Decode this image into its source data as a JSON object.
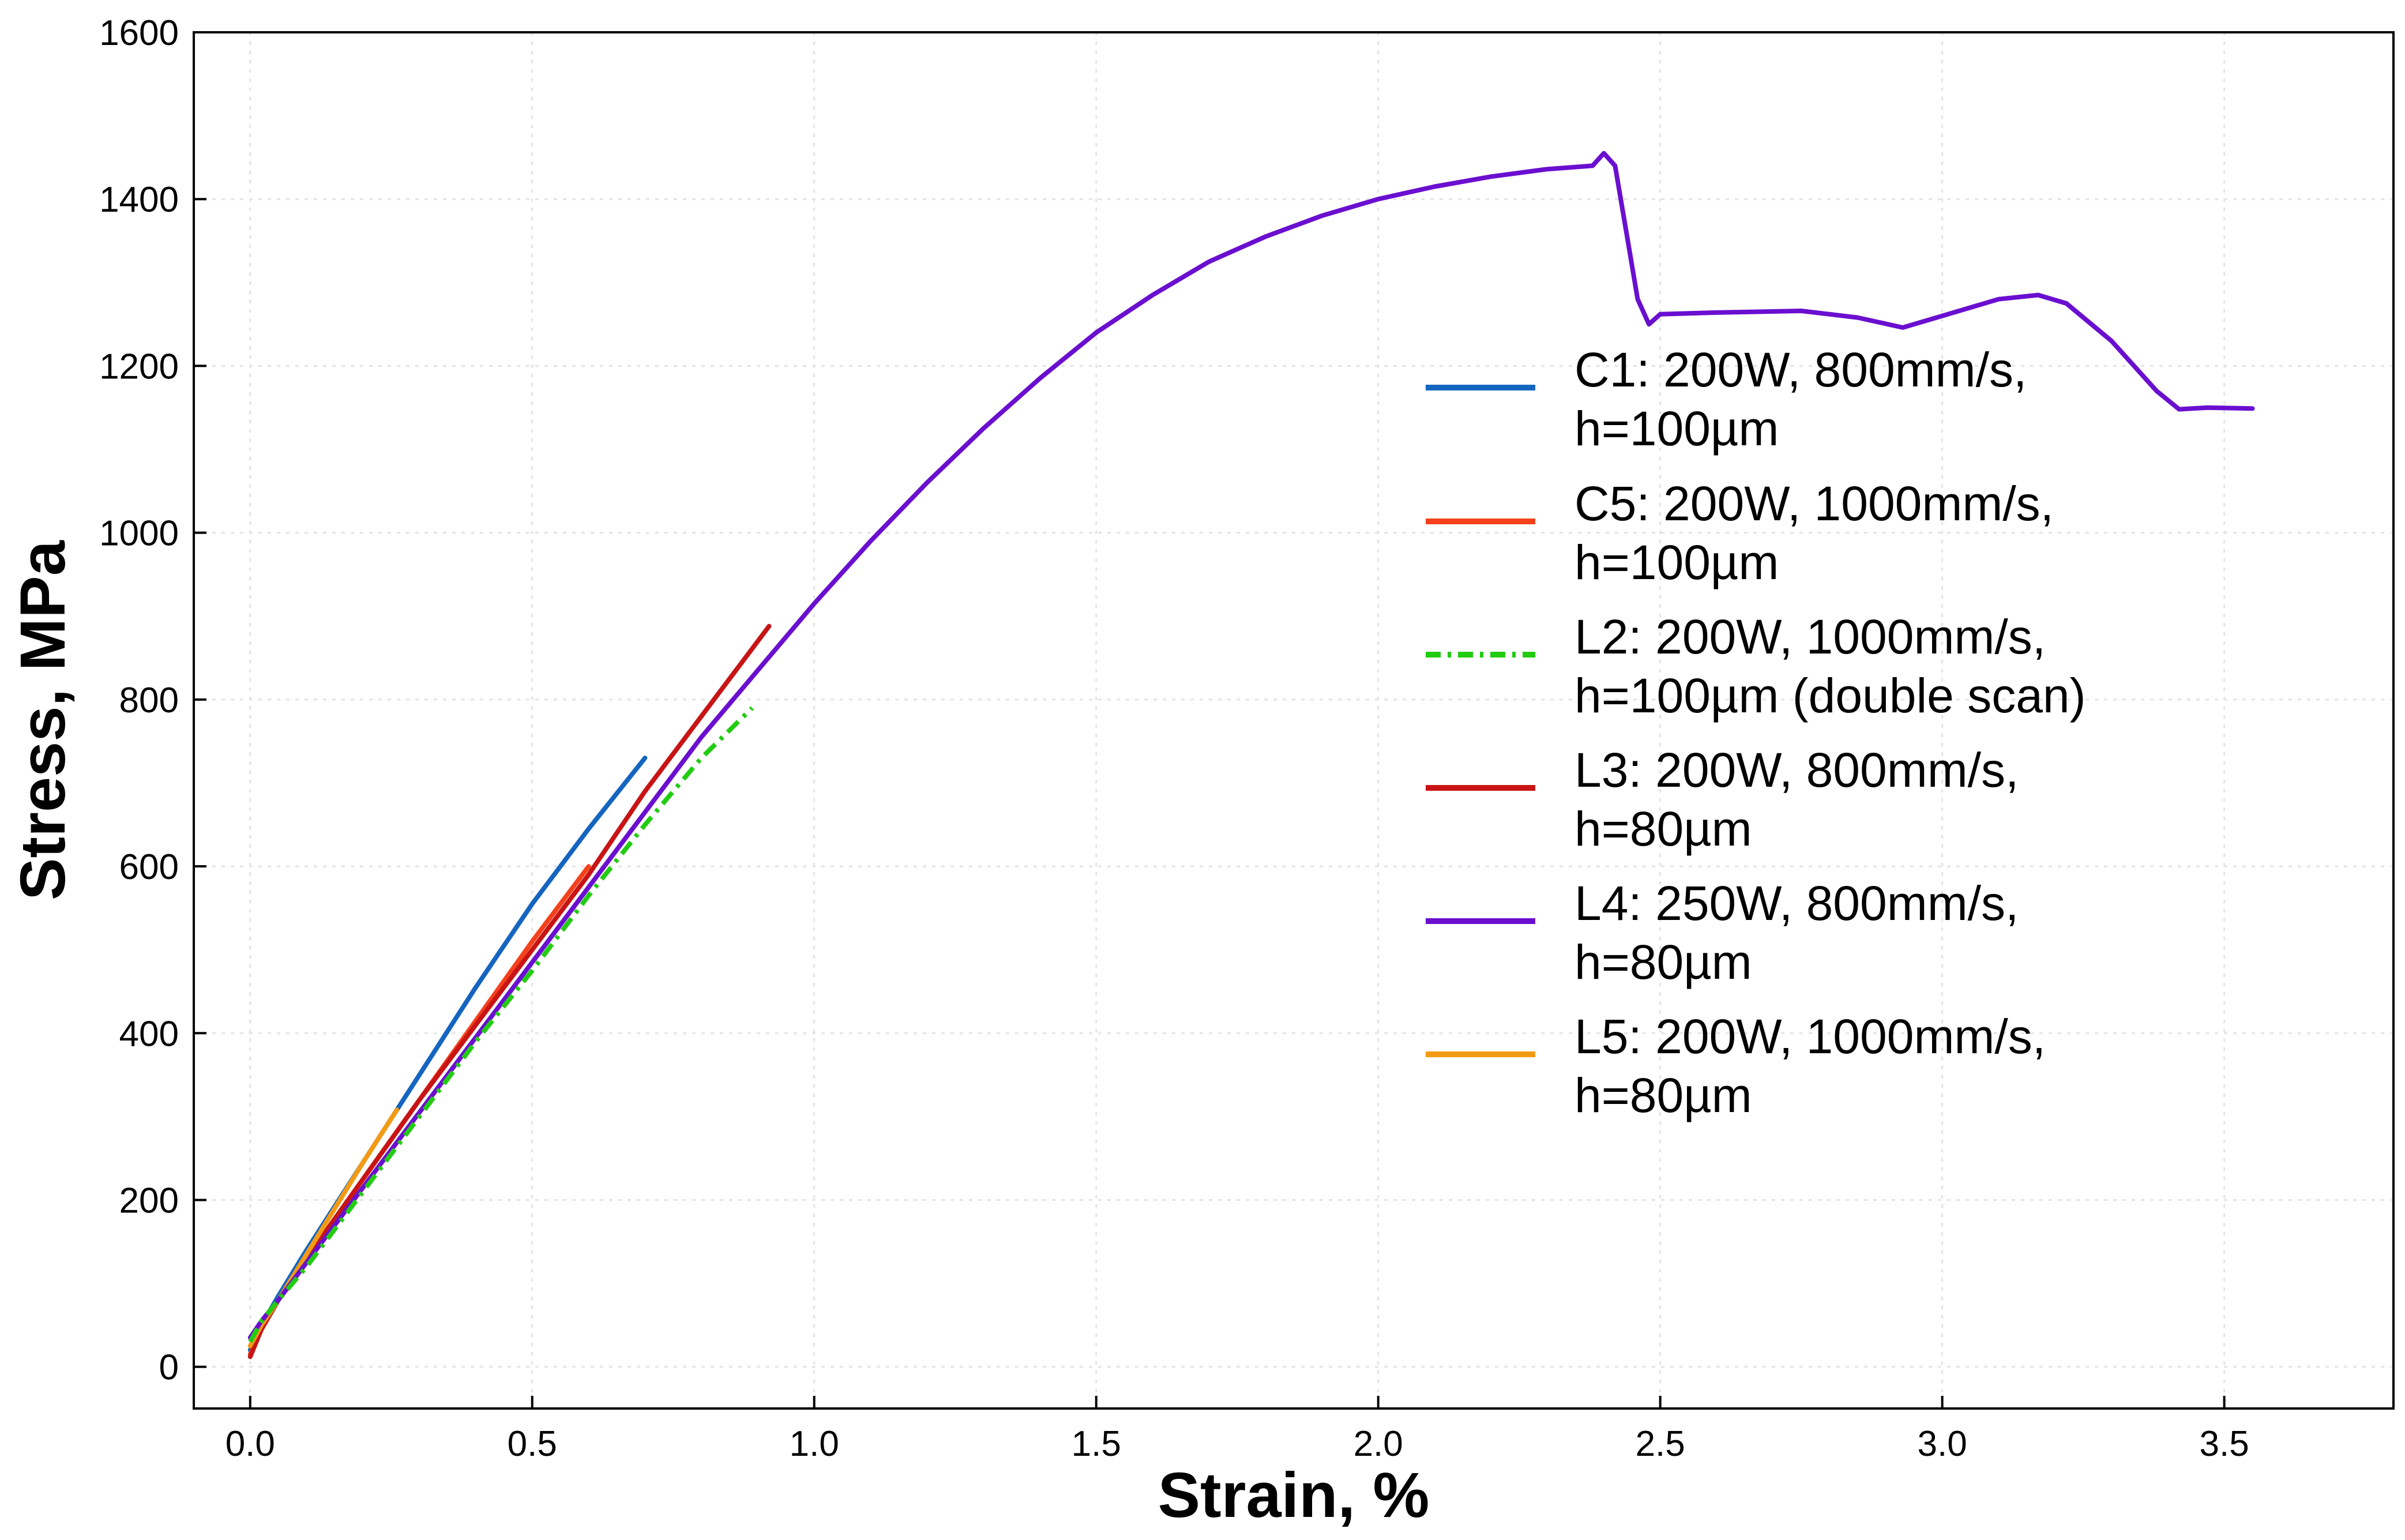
{
  "chart_data": {
    "type": "line",
    "title": "",
    "xlabel": "Strain, %",
    "ylabel": "Stress, MPa",
    "xlim": [
      -0.1,
      3.8
    ],
    "ylim": [
      -50,
      1600
    ],
    "x_ticks": [
      0.0,
      0.5,
      1.0,
      1.5,
      2.0,
      2.5,
      3.0,
      3.5
    ],
    "x_tick_labels": [
      "0.0",
      "0.5",
      "1.0",
      "1.5",
      "2.0",
      "2.5",
      "3.0",
      "3.5"
    ],
    "y_ticks": [
      0,
      200,
      400,
      600,
      800,
      1000,
      1200,
      1400,
      1600
    ],
    "y_tick_labels": [
      "0",
      "200",
      "400",
      "600",
      "800",
      "1000",
      "1200",
      "1400",
      "1600"
    ],
    "grid": true,
    "legend_position": "right",
    "series": [
      {
        "name_line1": "C1: 200W, 800mm/s,",
        "name_line2": "h=100µm",
        "color": "#1565c0",
        "dash": "solid",
        "x": [
          0.0,
          0.02,
          0.05,
          0.1,
          0.2,
          0.3,
          0.4,
          0.5,
          0.6,
          0.7
        ],
        "y": [
          20,
          50,
          85,
          140,
          245,
          350,
          455,
          555,
          645,
          730
        ]
      },
      {
        "name_line1": "C5: 200W, 1000mm/s,",
        "name_line2": "h=100µm",
        "color": "#f4411c",
        "dash": "solid",
        "x": [
          0.0,
          0.02,
          0.05,
          0.1,
          0.2,
          0.3,
          0.4,
          0.5,
          0.6
        ],
        "y": [
          15,
          45,
          80,
          130,
          225,
          320,
          415,
          510,
          600
        ]
      },
      {
        "name_line1": "L2: 200W, 1000mm/s,",
        "name_line2": "h=100µm (double scan)",
        "color": "#22cc11",
        "dash": "dashdot",
        "x": [
          0.0,
          0.02,
          0.05,
          0.1,
          0.2,
          0.3,
          0.4,
          0.5,
          0.6,
          0.7,
          0.8,
          0.89
        ],
        "y": [
          30,
          55,
          80,
          120,
          210,
          300,
          390,
          475,
          565,
          650,
          730,
          790
        ]
      },
      {
        "name_line1": "L3: 200W, 800mm/s,",
        "name_line2": "h=80µm",
        "color": "#c81414",
        "dash": "solid",
        "x": [
          0.0,
          0.02,
          0.05,
          0.1,
          0.2,
          0.3,
          0.4,
          0.5,
          0.6,
          0.7,
          0.8,
          0.92
        ],
        "y": [
          12,
          45,
          80,
          130,
          225,
          320,
          410,
          500,
          590,
          690,
          780,
          888
        ]
      },
      {
        "name_line1": "L4: 250W, 800mm/s,",
        "name_line2": "h=80µm",
        "color": "#6a0fd0",
        "dash": "solid",
        "x": [
          0.0,
          0.02,
          0.05,
          0.1,
          0.2,
          0.3,
          0.4,
          0.5,
          0.6,
          0.7,
          0.8,
          0.9,
          1.0,
          1.1,
          1.2,
          1.3,
          1.4,
          1.5,
          1.6,
          1.7,
          1.8,
          1.9,
          2.0,
          2.1,
          2.2,
          2.3,
          2.38,
          2.4,
          2.42,
          2.44,
          2.46,
          2.48,
          2.5,
          2.6,
          2.75,
          2.85,
          2.93,
          3.0,
          3.1,
          3.17,
          3.22,
          3.3,
          3.38,
          3.42,
          3.47,
          3.55
        ],
        "y": [
          35,
          55,
          80,
          125,
          215,
          305,
          395,
          485,
          575,
          665,
          755,
          835,
          915,
          990,
          1060,
          1125,
          1185,
          1240,
          1285,
          1325,
          1355,
          1380,
          1400,
          1415,
          1427,
          1436,
          1440,
          1455,
          1440,
          1360,
          1280,
          1250,
          1262,
          1264,
          1266,
          1258,
          1246,
          1260,
          1280,
          1285,
          1275,
          1230,
          1170,
          1148,
          1150,
          1149
        ]
      },
      {
        "name_line1": "L5: 200W, 1000mm/s,",
        "name_line2": "h=80µm",
        "color": "#f39a14",
        "dash": "solid",
        "x": [
          0.0,
          0.02,
          0.05,
          0.1,
          0.15,
          0.2,
          0.26
        ],
        "y": [
          25,
          50,
          80,
          135,
          190,
          245,
          308
        ]
      }
    ]
  }
}
